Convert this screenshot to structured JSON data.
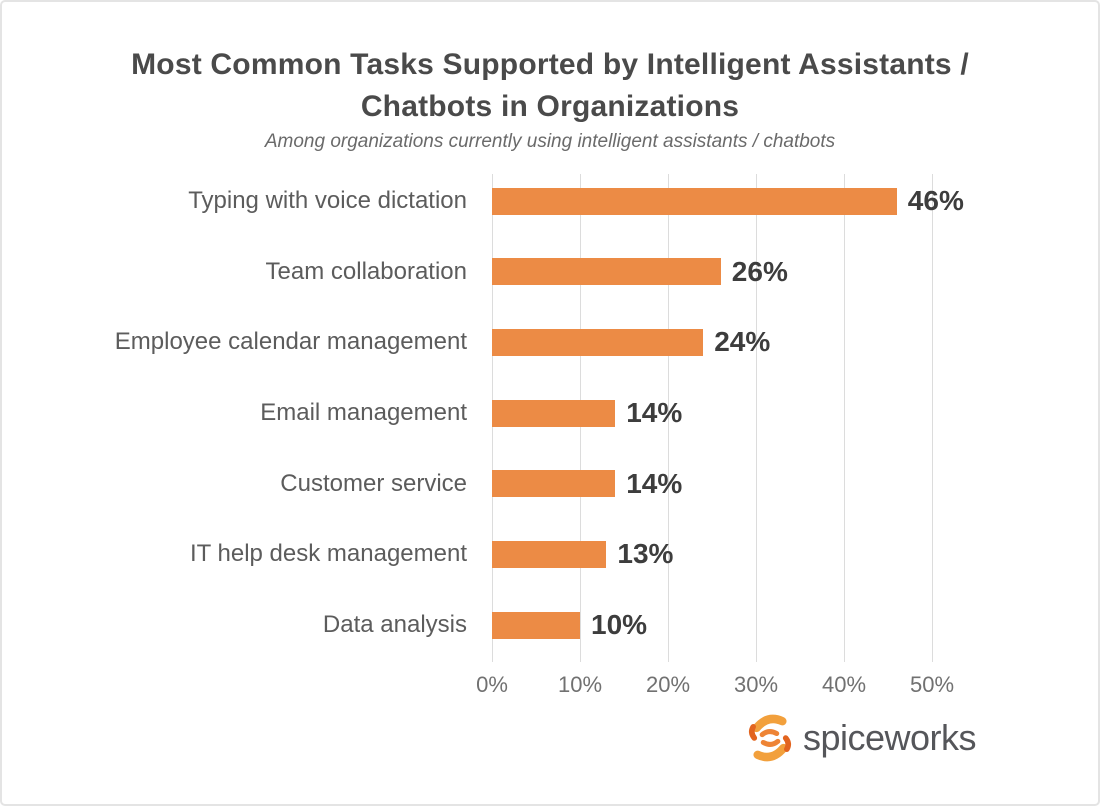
{
  "header": {
    "title_line1": "Most Common Tasks Supported by Intelligent Assistants /",
    "title_line2": "Chatbots in Organizations",
    "subtitle": "Among organizations currently using intelligent assistants / chatbots"
  },
  "chart_data": {
    "type": "bar",
    "orientation": "horizontal",
    "title": "Most Common Tasks Supported by Intelligent Assistants / Chatbots in Organizations",
    "subtitle": "Among organizations currently using intelligent assistants / chatbots",
    "categories": [
      "Typing with voice dictation",
      "Team collaboration",
      "Employee calendar management",
      "Email management",
      "Customer service",
      "IT help desk management",
      "Data analysis"
    ],
    "values": [
      46,
      26,
      24,
      14,
      14,
      13,
      10
    ],
    "value_labels": [
      "46%",
      "26%",
      "24%",
      "14%",
      "14%",
      "13%",
      "10%"
    ],
    "x_ticks": [
      "0%",
      "10%",
      "20%",
      "30%",
      "40%",
      "50%"
    ],
    "x_tick_values": [
      0,
      10,
      20,
      30,
      40,
      50
    ],
    "xlim": [
      0,
      50
    ],
    "grid": true,
    "legend": false,
    "bar_color": "#EC8B45",
    "gridline_color": "#DCDCDC"
  },
  "branding": {
    "logo_text": "spiceworks",
    "logo_icon": "spiceworks-pinwheel-icon",
    "logo_text_color": "#55565A",
    "logo_orange_light": "#F2A03C",
    "logo_orange_dark": "#E2641F"
  }
}
